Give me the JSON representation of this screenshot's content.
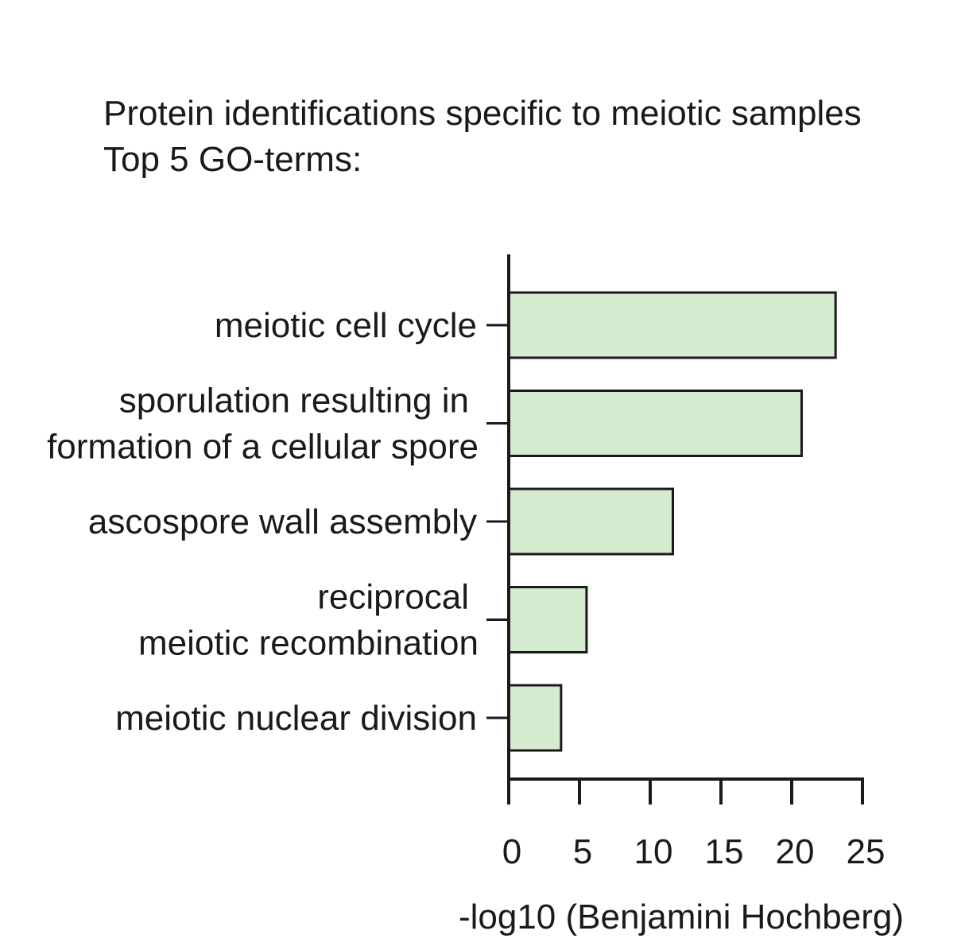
{
  "chart_data": {
    "type": "bar",
    "orientation": "horizontal",
    "title_lines": [
      "Protein identifications specific to meiotic samples",
      "Top 5 GO-terms:"
    ],
    "category_lines": [
      [
        "meiotic cell cycle"
      ],
      [
        "sporulation resulting in",
        "formation of a cellular spore"
      ],
      [
        "ascospore wall assembly"
      ],
      [
        "reciprocal",
        "meiotic recombination"
      ],
      [
        "meiotic nuclear division"
      ]
    ],
    "values": [
      23.1,
      20.7,
      11.6,
      5.5,
      3.7
    ],
    "xlabel": "-log10 (Benjamini Hochberg)",
    "xlim": [
      0,
      25
    ],
    "xticks": [
      "0",
      "5",
      "10",
      "15",
      "20",
      "25"
    ],
    "grid": false,
    "bar_color": "#d4ebcf",
    "edge_color": "#1a1a1a"
  }
}
